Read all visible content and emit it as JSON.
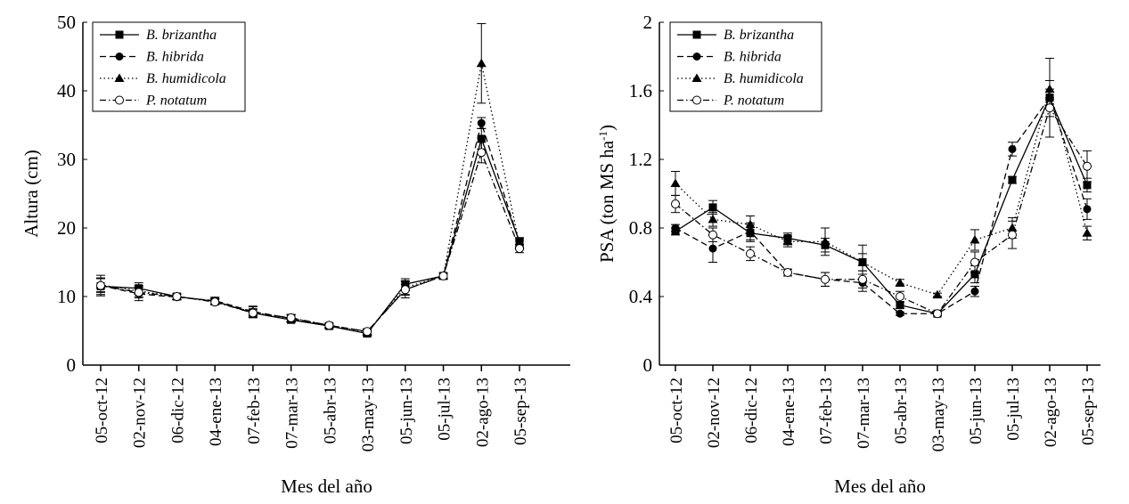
{
  "chart_data": [
    {
      "type": "line",
      "xlabel": "Mes del año",
      "ylabel": "Altura (cm)",
      "ylim": [
        0,
        50
      ],
      "yticks": [
        "0",
        "10",
        "20",
        "30",
        "40",
        "50"
      ],
      "categories": [
        "05-oct-12",
        "02-nov-12",
        "06-dic-12",
        "04-ene-13",
        "07-feb-13",
        "07-mar-13",
        "05-abr-13",
        "03-may-13",
        "05-jun-13",
        "05-jul-13",
        "02-ago-13",
        "05-sep-13"
      ],
      "legend": "top-left",
      "series": [
        {
          "name": "B. brizantha",
          "marker": "square",
          "dash": "solid",
          "values": [
            11.5,
            11.2,
            10.0,
            9.3,
            7.6,
            6.6,
            5.7,
            4.6,
            11.8,
            13.0,
            33.0,
            18.0
          ],
          "err": [
            1.2,
            0.8,
            0.4,
            0.4,
            0.6,
            0.4,
            0.3,
            0.4,
            0.8,
            0.4,
            1.5,
            0.6
          ]
        },
        {
          "name": "B. hibrida",
          "marker": "circle",
          "dash": "dashed",
          "values": [
            11.6,
            10.4,
            9.9,
            9.4,
            7.8,
            6.8,
            5.8,
            4.9,
            11.0,
            13.0,
            35.3,
            17.8
          ],
          "err": [
            1.5,
            1.0,
            0.4,
            0.5,
            0.8,
            0.5,
            0.3,
            0.4,
            1.2,
            0.4,
            0.8,
            0.6
          ]
        },
        {
          "name": "B. humidicola",
          "marker": "triangle",
          "dash": "dotted",
          "values": [
            11.7,
            10.8,
            10.0,
            9.3,
            7.7,
            6.8,
            5.8,
            4.8,
            11.3,
            13.0,
            44.0,
            17.5
          ],
          "err": [
            1.0,
            0.8,
            0.4,
            0.4,
            0.8,
            0.5,
            0.3,
            0.4,
            1.0,
            0.4,
            5.8,
            0.6
          ]
        },
        {
          "name": "P. notatum",
          "marker": "open-circle",
          "dash": "dashdot",
          "values": [
            11.6,
            10.6,
            10.0,
            9.2,
            7.6,
            6.9,
            5.8,
            4.9,
            11.0,
            13.0,
            31.0,
            17.0
          ],
          "err": [
            1.0,
            0.8,
            0.4,
            0.4,
            0.6,
            0.5,
            0.3,
            0.4,
            0.8,
            0.4,
            1.5,
            0.6
          ]
        }
      ]
    },
    {
      "type": "line",
      "xlabel": "Mes del año",
      "ylabel": "PSA (ton MS ha",
      "ylabel_sup": "-1",
      "ylabel_end": ")",
      "ylim": [
        0,
        2
      ],
      "yticks": [
        "0",
        "0.4",
        "0.8",
        "1.2",
        "1.6",
        "2"
      ],
      "categories": [
        "05-oct-12",
        "02-nov-12",
        "06-dic-12",
        "04-ene-13",
        "07-feb-13",
        "07-mar-13",
        "05-abr-13",
        "03-may-13",
        "05-jun-13",
        "05-jul-13",
        "02-ago-13",
        "05-sep-13"
      ],
      "legend": "top-left",
      "series": [
        {
          "name": "B. brizantha",
          "marker": "square",
          "dash": "solid",
          "values": [
            0.78,
            0.92,
            0.77,
            0.74,
            0.7,
            0.6,
            0.35,
            0.3,
            0.53,
            1.08,
            1.56,
            1.05
          ],
          "err": [
            0.02,
            0.04,
            0.05,
            0.03,
            0.04,
            0.1,
            0.02,
            0.01,
            0.05,
            0.02,
            0.23,
            0.04
          ]
        },
        {
          "name": "B. hibrida",
          "marker": "circle",
          "dash": "dashed",
          "values": [
            0.8,
            0.68,
            0.78,
            0.54,
            0.5,
            0.48,
            0.3,
            0.3,
            0.43,
            1.26,
            1.56,
            0.91
          ],
          "err": [
            0.02,
            0.08,
            0.05,
            0.02,
            0.04,
            0.05,
            0.01,
            0.01,
            0.03,
            0.04,
            0.05,
            0.06
          ]
        },
        {
          "name": "B. humidicola",
          "marker": "triangle",
          "dash": "dotted",
          "values": [
            1.06,
            0.85,
            0.82,
            0.72,
            0.72,
            0.6,
            0.48,
            0.41,
            0.73,
            0.8,
            1.61,
            0.77
          ],
          "err": [
            0.07,
            0.04,
            0.05,
            0.03,
            0.08,
            0.05,
            0.02,
            0.01,
            0.06,
            0.06,
            0.05,
            0.04
          ]
        },
        {
          "name": "P. notatum",
          "marker": "open-circle",
          "dash": "dashdot",
          "values": [
            0.94,
            0.76,
            0.65,
            0.54,
            0.5,
            0.5,
            0.4,
            0.3,
            0.6,
            0.76,
            1.5,
            1.16
          ],
          "err": [
            0.05,
            0.04,
            0.04,
            0.02,
            0.04,
            0.05,
            0.03,
            0.01,
            0.06,
            0.08,
            0.05,
            0.09
          ]
        }
      ]
    }
  ]
}
